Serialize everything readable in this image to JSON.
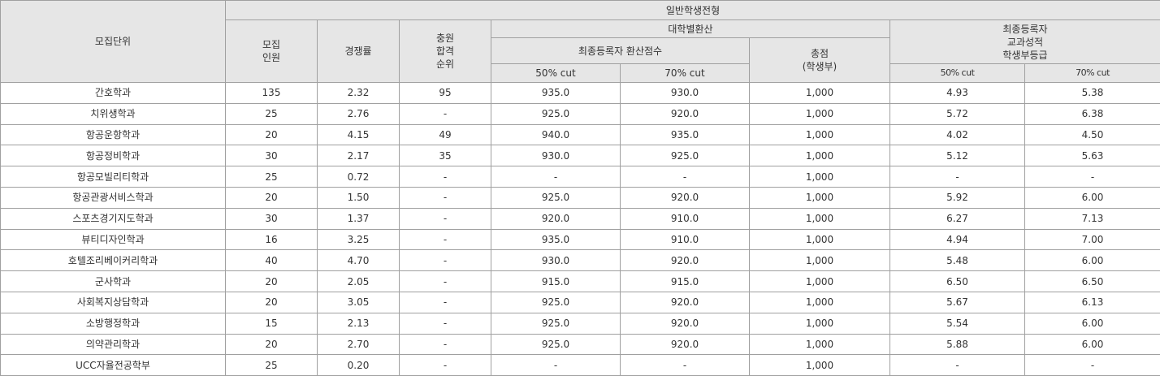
{
  "header": {
    "unit": "모집단위",
    "track": "일반학생전형",
    "quota": "모집\n인원",
    "ratio": "경쟁률",
    "waitlist": "충원\n합격\n순위",
    "univ_conv": "대학별환산",
    "final_conv": "최종등록자 환산점수",
    "total": "총점\n(학생부)",
    "final_grade": "최종등록자\n교과성적\n학생부등급",
    "conv_50": "50% cut",
    "conv_70": "70% cut",
    "grade_50": "50% cut",
    "grade_70": "70% cut"
  },
  "rows": [
    {
      "unit": "간호학과",
      "quota": "135",
      "ratio": "2.32",
      "waitlist": "95",
      "conv_50": "935.0",
      "conv_70": "930.0",
      "total": "1,000",
      "grade_50": "4.93",
      "grade_70": "5.38"
    },
    {
      "unit": "치위생학과",
      "quota": "25",
      "ratio": "2.76",
      "waitlist": "-",
      "conv_50": "925.0",
      "conv_70": "920.0",
      "total": "1,000",
      "grade_50": "5.72",
      "grade_70": "6.38"
    },
    {
      "unit": "항공운항학과",
      "quota": "20",
      "ratio": "4.15",
      "waitlist": "49",
      "conv_50": "940.0",
      "conv_70": "935.0",
      "total": "1,000",
      "grade_50": "4.02",
      "grade_70": "4.50"
    },
    {
      "unit": "항공정비학과",
      "quota": "30",
      "ratio": "2.17",
      "waitlist": "35",
      "conv_50": "930.0",
      "conv_70": "925.0",
      "total": "1,000",
      "grade_50": "5.12",
      "grade_70": "5.63"
    },
    {
      "unit": "항공모빌리티학과",
      "quota": "25",
      "ratio": "0.72",
      "waitlist": "-",
      "conv_50": "-",
      "conv_70": "-",
      "total": "1,000",
      "grade_50": "-",
      "grade_70": "-"
    },
    {
      "unit": "항공관광서비스학과",
      "quota": "20",
      "ratio": "1.50",
      "waitlist": "-",
      "conv_50": "925.0",
      "conv_70": "920.0",
      "total": "1,000",
      "grade_50": "5.92",
      "grade_70": "6.00"
    },
    {
      "unit": "스포츠경기지도학과",
      "quota": "30",
      "ratio": "1.37",
      "waitlist": "-",
      "conv_50": "920.0",
      "conv_70": "910.0",
      "total": "1,000",
      "grade_50": "6.27",
      "grade_70": "7.13"
    },
    {
      "unit": "뷰티디자인학과",
      "quota": "16",
      "ratio": "3.25",
      "waitlist": "-",
      "conv_50": "935.0",
      "conv_70": "910.0",
      "total": "1,000",
      "grade_50": "4.94",
      "grade_70": "7.00"
    },
    {
      "unit": "호텔조리베이커리학과",
      "quota": "40",
      "ratio": "4.70",
      "waitlist": "-",
      "conv_50": "930.0",
      "conv_70": "920.0",
      "total": "1,000",
      "grade_50": "5.48",
      "grade_70": "6.00"
    },
    {
      "unit": "군사학과",
      "quota": "20",
      "ratio": "2.05",
      "waitlist": "-",
      "conv_50": "915.0",
      "conv_70": "915.0",
      "total": "1,000",
      "grade_50": "6.50",
      "grade_70": "6.50"
    },
    {
      "unit": "사회복지상담학과",
      "quota": "20",
      "ratio": "3.05",
      "waitlist": "-",
      "conv_50": "925.0",
      "conv_70": "920.0",
      "total": "1,000",
      "grade_50": "5.67",
      "grade_70": "6.13"
    },
    {
      "unit": "소방행정학과",
      "quota": "15",
      "ratio": "2.13",
      "waitlist": "-",
      "conv_50": "925.0",
      "conv_70": "920.0",
      "total": "1,000",
      "grade_50": "5.54",
      "grade_70": "6.00"
    },
    {
      "unit": "의약관리학과",
      "quota": "20",
      "ratio": "2.70",
      "waitlist": "-",
      "conv_50": "925.0",
      "conv_70": "920.0",
      "total": "1,000",
      "grade_50": "5.88",
      "grade_70": "6.00"
    },
    {
      "unit": "UCC자율전공학부",
      "quota": "25",
      "ratio": "0.20",
      "waitlist": "-",
      "conv_50": "-",
      "conv_70": "-",
      "total": "1,000",
      "grade_50": "-",
      "grade_70": "-"
    }
  ]
}
